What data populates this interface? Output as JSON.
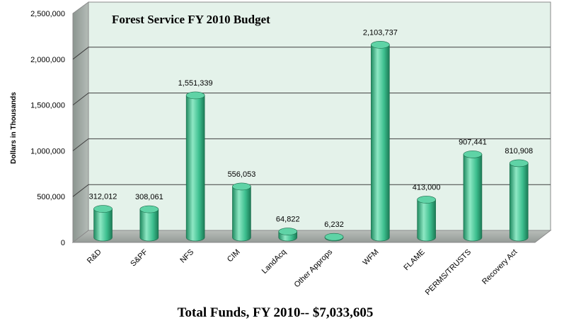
{
  "chart_data": {
    "type": "bar",
    "title": "Forest Service FY 2010 Budget",
    "subtitle": "Total Funds, FY 2010-- $7,033,605",
    "xlabel": "",
    "ylabel": "Dollars in Thousands",
    "ylim": [
      0,
      2500000
    ],
    "yticks": [
      "0",
      "500,000",
      "1,000,000",
      "1,500,000",
      "2,000,000",
      "2,500,000"
    ],
    "categories": [
      "R&D",
      "S&PF",
      "NFS",
      "CIM",
      "LandAcq",
      "Other Approps",
      "WFM",
      "FLAME",
      "PERMS/TRUSTS",
      "Recovery Act"
    ],
    "values": [
      312012,
      308061,
      1551339,
      556053,
      64822,
      6232,
      2103737,
      413000,
      907441,
      810908
    ],
    "data_labels": [
      "312,012",
      "308,061",
      "1,551,339",
      "556,053",
      "64,822",
      "6,232",
      "2,103,737",
      "413,000",
      "907,441",
      "810,908"
    ],
    "grid": true,
    "legend": "none",
    "colors": {
      "bar": "#3dbf8f",
      "bar_dark": "#1f8a60",
      "bar_light": "#8ee8c4",
      "back_wall": "#e4f2ea",
      "side_wall": "#9aa39e",
      "floor": "#a6aca8",
      "grid": "#3f3f3f"
    }
  }
}
